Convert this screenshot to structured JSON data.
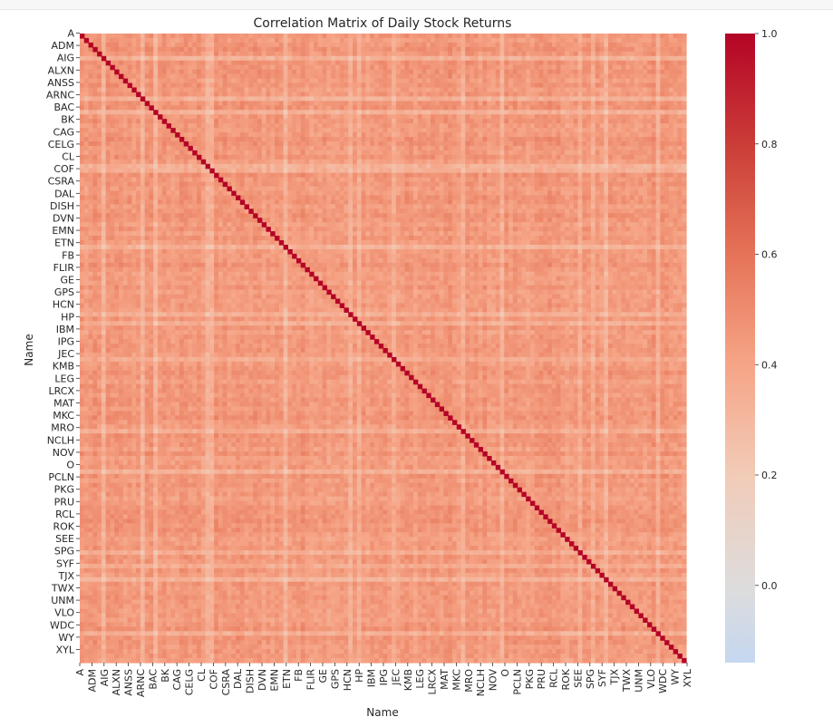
{
  "chart_data": {
    "type": "heatmap",
    "title": "Correlation Matrix of Daily Stock Returns",
    "xlabel": "Name",
    "ylabel": "Name",
    "tick_labels": [
      "A",
      "ADM",
      "AIG",
      "ALXN",
      "ANSS",
      "ARNC",
      "BAC",
      "BK",
      "CAG",
      "CELG",
      "CL",
      "COF",
      "CSRA",
      "DAL",
      "DISH",
      "DVN",
      "EMN",
      "ETN",
      "FB",
      "FLIR",
      "GE",
      "GPS",
      "HCN",
      "HP",
      "IBM",
      "IPG",
      "JEC",
      "KMB",
      "LEG",
      "LRCX",
      "MAT",
      "MKC",
      "MRO",
      "NCLH",
      "NOV",
      "O",
      "PCLN",
      "PKG",
      "PRU",
      "RCL",
      "ROK",
      "SEE",
      "SPG",
      "SYF",
      "TJX",
      "TWX",
      "UNM",
      "VLO",
      "WDC",
      "WY",
      "XYL"
    ],
    "diagonal_value": 1.0,
    "typical_offdiagonal_range": [
      0.3,
      0.6
    ],
    "colorbar": {
      "colormap": "coolwarm",
      "vmin": -0.14,
      "vmax": 1.0,
      "ticks": [
        0.0,
        0.2,
        0.4,
        0.6,
        0.8,
        1.0
      ],
      "tick_labels": [
        "0.0",
        "0.2",
        "0.4",
        "0.6",
        "0.8",
        "1.0"
      ]
    }
  }
}
